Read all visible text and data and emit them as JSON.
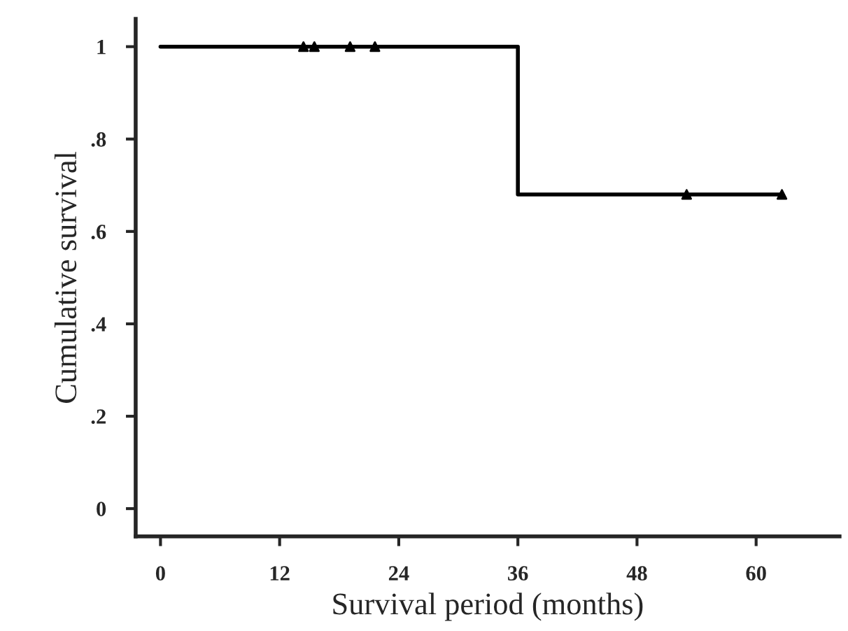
{
  "chart_data": {
    "type": "step",
    "xlabel": "Survival period (months)",
    "ylabel": "Cumulative survival",
    "xlim": [
      -2.5,
      68.4
    ],
    "ylim": [
      -0.06,
      1.06
    ],
    "xticks": [
      0,
      12,
      24,
      36,
      48,
      60
    ],
    "yticks": [
      0,
      {
        "value": 0.2,
        "label": ".2"
      },
      {
        "value": 0.4,
        "label": ".4"
      },
      {
        "value": 0.6,
        "label": ".6"
      },
      {
        "value": 0.8,
        "label": ".8"
      },
      1
    ],
    "grid": false,
    "legend": false,
    "series": [
      {
        "color": "#000000",
        "x": [
          0,
          36,
          62.6
        ],
        "values": [
          1,
          0.68,
          0.68
        ],
        "marker": "none"
      },
      {
        "type": "scatter",
        "color": "#000000",
        "x": [
          14.4,
          15.5,
          19.1,
          21.6,
          53.0,
          62.6
        ],
        "values": [
          1,
          1,
          1,
          1,
          0.68,
          0.68
        ],
        "marker": "triangle"
      }
    ]
  }
}
